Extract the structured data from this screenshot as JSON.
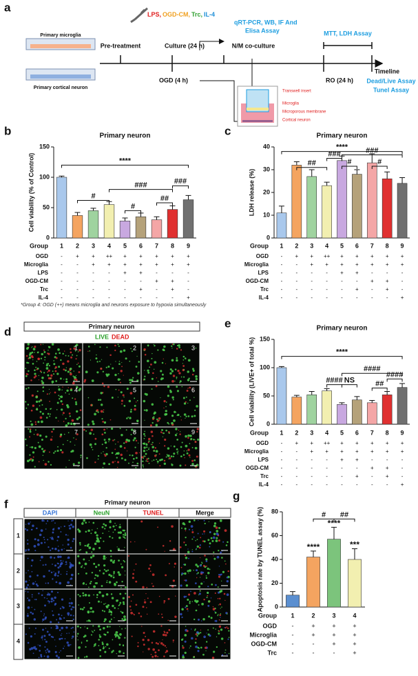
{
  "schematic": {
    "panel": "a",
    "treatments": [
      {
        "text": "LPS,",
        "color": "#e02020"
      },
      {
        "text": "OGD-CM,",
        "color": "#f0a020"
      },
      {
        "text": "Trc,",
        "color": "#30a030"
      },
      {
        "text": "IL-4",
        "color": "#1e8fd8"
      }
    ],
    "assay1": "qRT-PCR, WB, IF And",
    "assay1b": "Elisa Assay",
    "dish1": "Primary microglia",
    "dish2": "Primary cortical neuron",
    "pre": "Pre-treatment",
    "culture": "Culture (24 h)",
    "cocult": "N/M co-culture",
    "mtt": "MTT, LDH Assay",
    "ogd": "OGD (4 h)",
    "ro": "RO (24 h)",
    "timeline": "Timeline",
    "dead": "Dead/Live Assay",
    "tunel": "Tunel Assay",
    "tw1": "Transwell insert",
    "tw2": "Microglia",
    "tw3": "Microporous membrane",
    "tw4": "Cortical neuron"
  },
  "chart_data": [
    {
      "type": "bar",
      "panel": "b",
      "title": "Primary neuron",
      "ylabel": "Cell viability (% of Control)",
      "category_label": "Group",
      "categories": [
        "1",
        "2",
        "3",
        "4",
        "5",
        "6",
        "7",
        "8",
        "9"
      ],
      "values": [
        100,
        37,
        45,
        55,
        28,
        35,
        30,
        47,
        63
      ],
      "errors": [
        2,
        5,
        4,
        5,
        5,
        6,
        5,
        6,
        7
      ],
      "colors": [
        "#a9c8ec",
        "#f4a460",
        "#9fd39f",
        "#f2efb0",
        "#c8a8e0",
        "#b5a27a",
        "#f4a6a6",
        "#e03030",
        "#707070"
      ],
      "ylim": [
        0,
        150
      ],
      "yticks": [
        0,
        50,
        100,
        150
      ],
      "annotations": [
        "****",
        "#",
        "###",
        "#",
        "##",
        "###"
      ],
      "table": [
        {
          "label": "OGD",
          "cells": [
            "-",
            "+",
            "+",
            "++",
            "+",
            "+",
            "+",
            "+",
            "+"
          ]
        },
        {
          "label": "Microglia",
          "cells": [
            "-",
            "-",
            "+",
            "+",
            "+",
            "+",
            "+",
            "+",
            "+"
          ]
        },
        {
          "label": "LPS",
          "cells": [
            "-",
            "-",
            "-",
            "-",
            "+",
            "+",
            "-",
            "-",
            "-"
          ]
        },
        {
          "label": "OGD-CM",
          "cells": [
            "-",
            "-",
            "-",
            "-",
            "-",
            "-",
            "+",
            "+",
            "-"
          ]
        },
        {
          "label": "Trc",
          "cells": [
            "-",
            "-",
            "-",
            "-",
            "-",
            "+",
            "-",
            "+",
            "-"
          ]
        },
        {
          "label": "IL-4",
          "cells": [
            "-",
            "-",
            "-",
            "-",
            "-",
            "-",
            "-",
            "-",
            "+"
          ]
        }
      ],
      "footnote": "*Group 4: OGD (++) means microglia and neurons exposure to hypoxia simultaneously"
    },
    {
      "type": "bar",
      "panel": "c",
      "title": "Primary neuron",
      "ylabel": "LDH release (%)",
      "category_label": "Group",
      "categories": [
        "1",
        "2",
        "3",
        "4",
        "5",
        "6",
        "7",
        "8",
        "9"
      ],
      "values": [
        11,
        32,
        27,
        23,
        34,
        28,
        33,
        26,
        24
      ],
      "errors": [
        3,
        1.5,
        3,
        1.5,
        2,
        2,
        4,
        3,
        2.5
      ],
      "colors": [
        "#a9c8ec",
        "#f4a460",
        "#9fd39f",
        "#f2efb0",
        "#c8a8e0",
        "#b5a27a",
        "#f4a6a6",
        "#e03030",
        "#707070"
      ],
      "ylim": [
        0,
        40
      ],
      "yticks": [
        0,
        10,
        20,
        30,
        40
      ],
      "annotations": [
        "****",
        "##",
        "###",
        "#",
        "###",
        "#"
      ],
      "table": [
        {
          "label": "OGD",
          "cells": [
            "-",
            "+",
            "+",
            "++",
            "+",
            "+",
            "+",
            "+",
            "+"
          ]
        },
        {
          "label": "Microglia",
          "cells": [
            "-",
            "-",
            "+",
            "+",
            "+",
            "+",
            "+",
            "+",
            "+"
          ]
        },
        {
          "label": "LPS",
          "cells": [
            "-",
            "-",
            "-",
            "-",
            "+",
            "+",
            "-",
            "-",
            "-"
          ]
        },
        {
          "label": "OGD-CM",
          "cells": [
            "-",
            "-",
            "-",
            "-",
            "-",
            "-",
            "+",
            "+",
            "-"
          ]
        },
        {
          "label": "Trc",
          "cells": [
            "-",
            "-",
            "-",
            "-",
            "-",
            "+",
            "-",
            "+",
            "-"
          ]
        },
        {
          "label": "IL-4",
          "cells": [
            "-",
            "-",
            "-",
            "-",
            "-",
            "-",
            "-",
            "-",
            "+"
          ]
        }
      ]
    },
    {
      "type": "bar",
      "panel": "e",
      "title": "Primary neuron",
      "ylabel": "Cell viability (LIVE+ of total %)",
      "category_label": "Group",
      "categories": [
        "1",
        "2",
        "3",
        "4",
        "5",
        "6",
        "7",
        "8",
        "9"
      ],
      "values": [
        100,
        48,
        52,
        59,
        35,
        43,
        38,
        52,
        65
      ],
      "errors": [
        2,
        3,
        6,
        4,
        3,
        6,
        4,
        6,
        7
      ],
      "colors": [
        "#a9c8ec",
        "#f4a460",
        "#9fd39f",
        "#f2efb0",
        "#c8a8e0",
        "#b5a27a",
        "#f4a6a6",
        "#e03030",
        "#707070"
      ],
      "ylim": [
        0,
        150
      ],
      "yticks": [
        0,
        50,
        100,
        150
      ],
      "annotations": [
        "****",
        "####",
        "NS",
        "####",
        "##",
        "####"
      ],
      "table": [
        {
          "label": "OGD",
          "cells": [
            "-",
            "+",
            "+",
            "++",
            "+",
            "+",
            "+",
            "+",
            "+"
          ]
        },
        {
          "label": "Microglia",
          "cells": [
            "-",
            "-",
            "+",
            "+",
            "+",
            "+",
            "+",
            "+",
            "+"
          ]
        },
        {
          "label": "LPS",
          "cells": [
            "-",
            "-",
            "-",
            "-",
            "+",
            "+",
            "-",
            "-",
            "-"
          ]
        },
        {
          "label": "OGD-CM",
          "cells": [
            "-",
            "-",
            "-",
            "-",
            "-",
            "-",
            "+",
            "+",
            "-"
          ]
        },
        {
          "label": "Trc",
          "cells": [
            "-",
            "-",
            "-",
            "-",
            "-",
            "+",
            "-",
            "+",
            "-"
          ]
        },
        {
          "label": "IL-4",
          "cells": [
            "-",
            "-",
            "-",
            "-",
            "-",
            "-",
            "-",
            "-",
            "+"
          ]
        }
      ]
    },
    {
      "type": "bar",
      "panel": "g",
      "title": "",
      "ylabel": "Apoptosis rate by TUNEL assay (%)",
      "category_label": "Group",
      "categories": [
        "1",
        "2",
        "3",
        "4"
      ],
      "values": [
        10,
        42,
        57,
        40
      ],
      "errors": [
        3,
        5,
        10,
        9
      ],
      "colors": [
        "#5b8fd0",
        "#f4a460",
        "#7cc47c",
        "#f2efb0"
      ],
      "ylim": [
        0,
        80
      ],
      "yticks": [
        0,
        20,
        40,
        60,
        80
      ],
      "annotations": [
        "****",
        "****",
        "***",
        "#",
        "##"
      ],
      "table": [
        {
          "label": "OGD",
          "cells": [
            "-",
            "+",
            "+",
            "+"
          ]
        },
        {
          "label": "Microglia",
          "cells": [
            "-",
            "+",
            "+",
            "+"
          ]
        },
        {
          "label": "OGD-CM",
          "cells": [
            "-",
            "-",
            "+",
            "+"
          ]
        },
        {
          "label": "Trc",
          "cells": [
            "-",
            "-",
            "-",
            "+"
          ]
        }
      ]
    }
  ],
  "images": [
    {
      "panel": "d",
      "title": "Primary neuron",
      "live": "LIVE",
      "dead": "DEAD",
      "tiles": [
        "1",
        "2",
        "3",
        "4",
        "5",
        "6",
        "7",
        "8",
        "9"
      ]
    },
    {
      "panel": "f",
      "title": "Primary neuron",
      "columns": [
        "DAPI",
        "NeuN",
        "TUNEL",
        "Merge"
      ],
      "rows": [
        "1",
        "2",
        "3",
        "4"
      ]
    }
  ]
}
